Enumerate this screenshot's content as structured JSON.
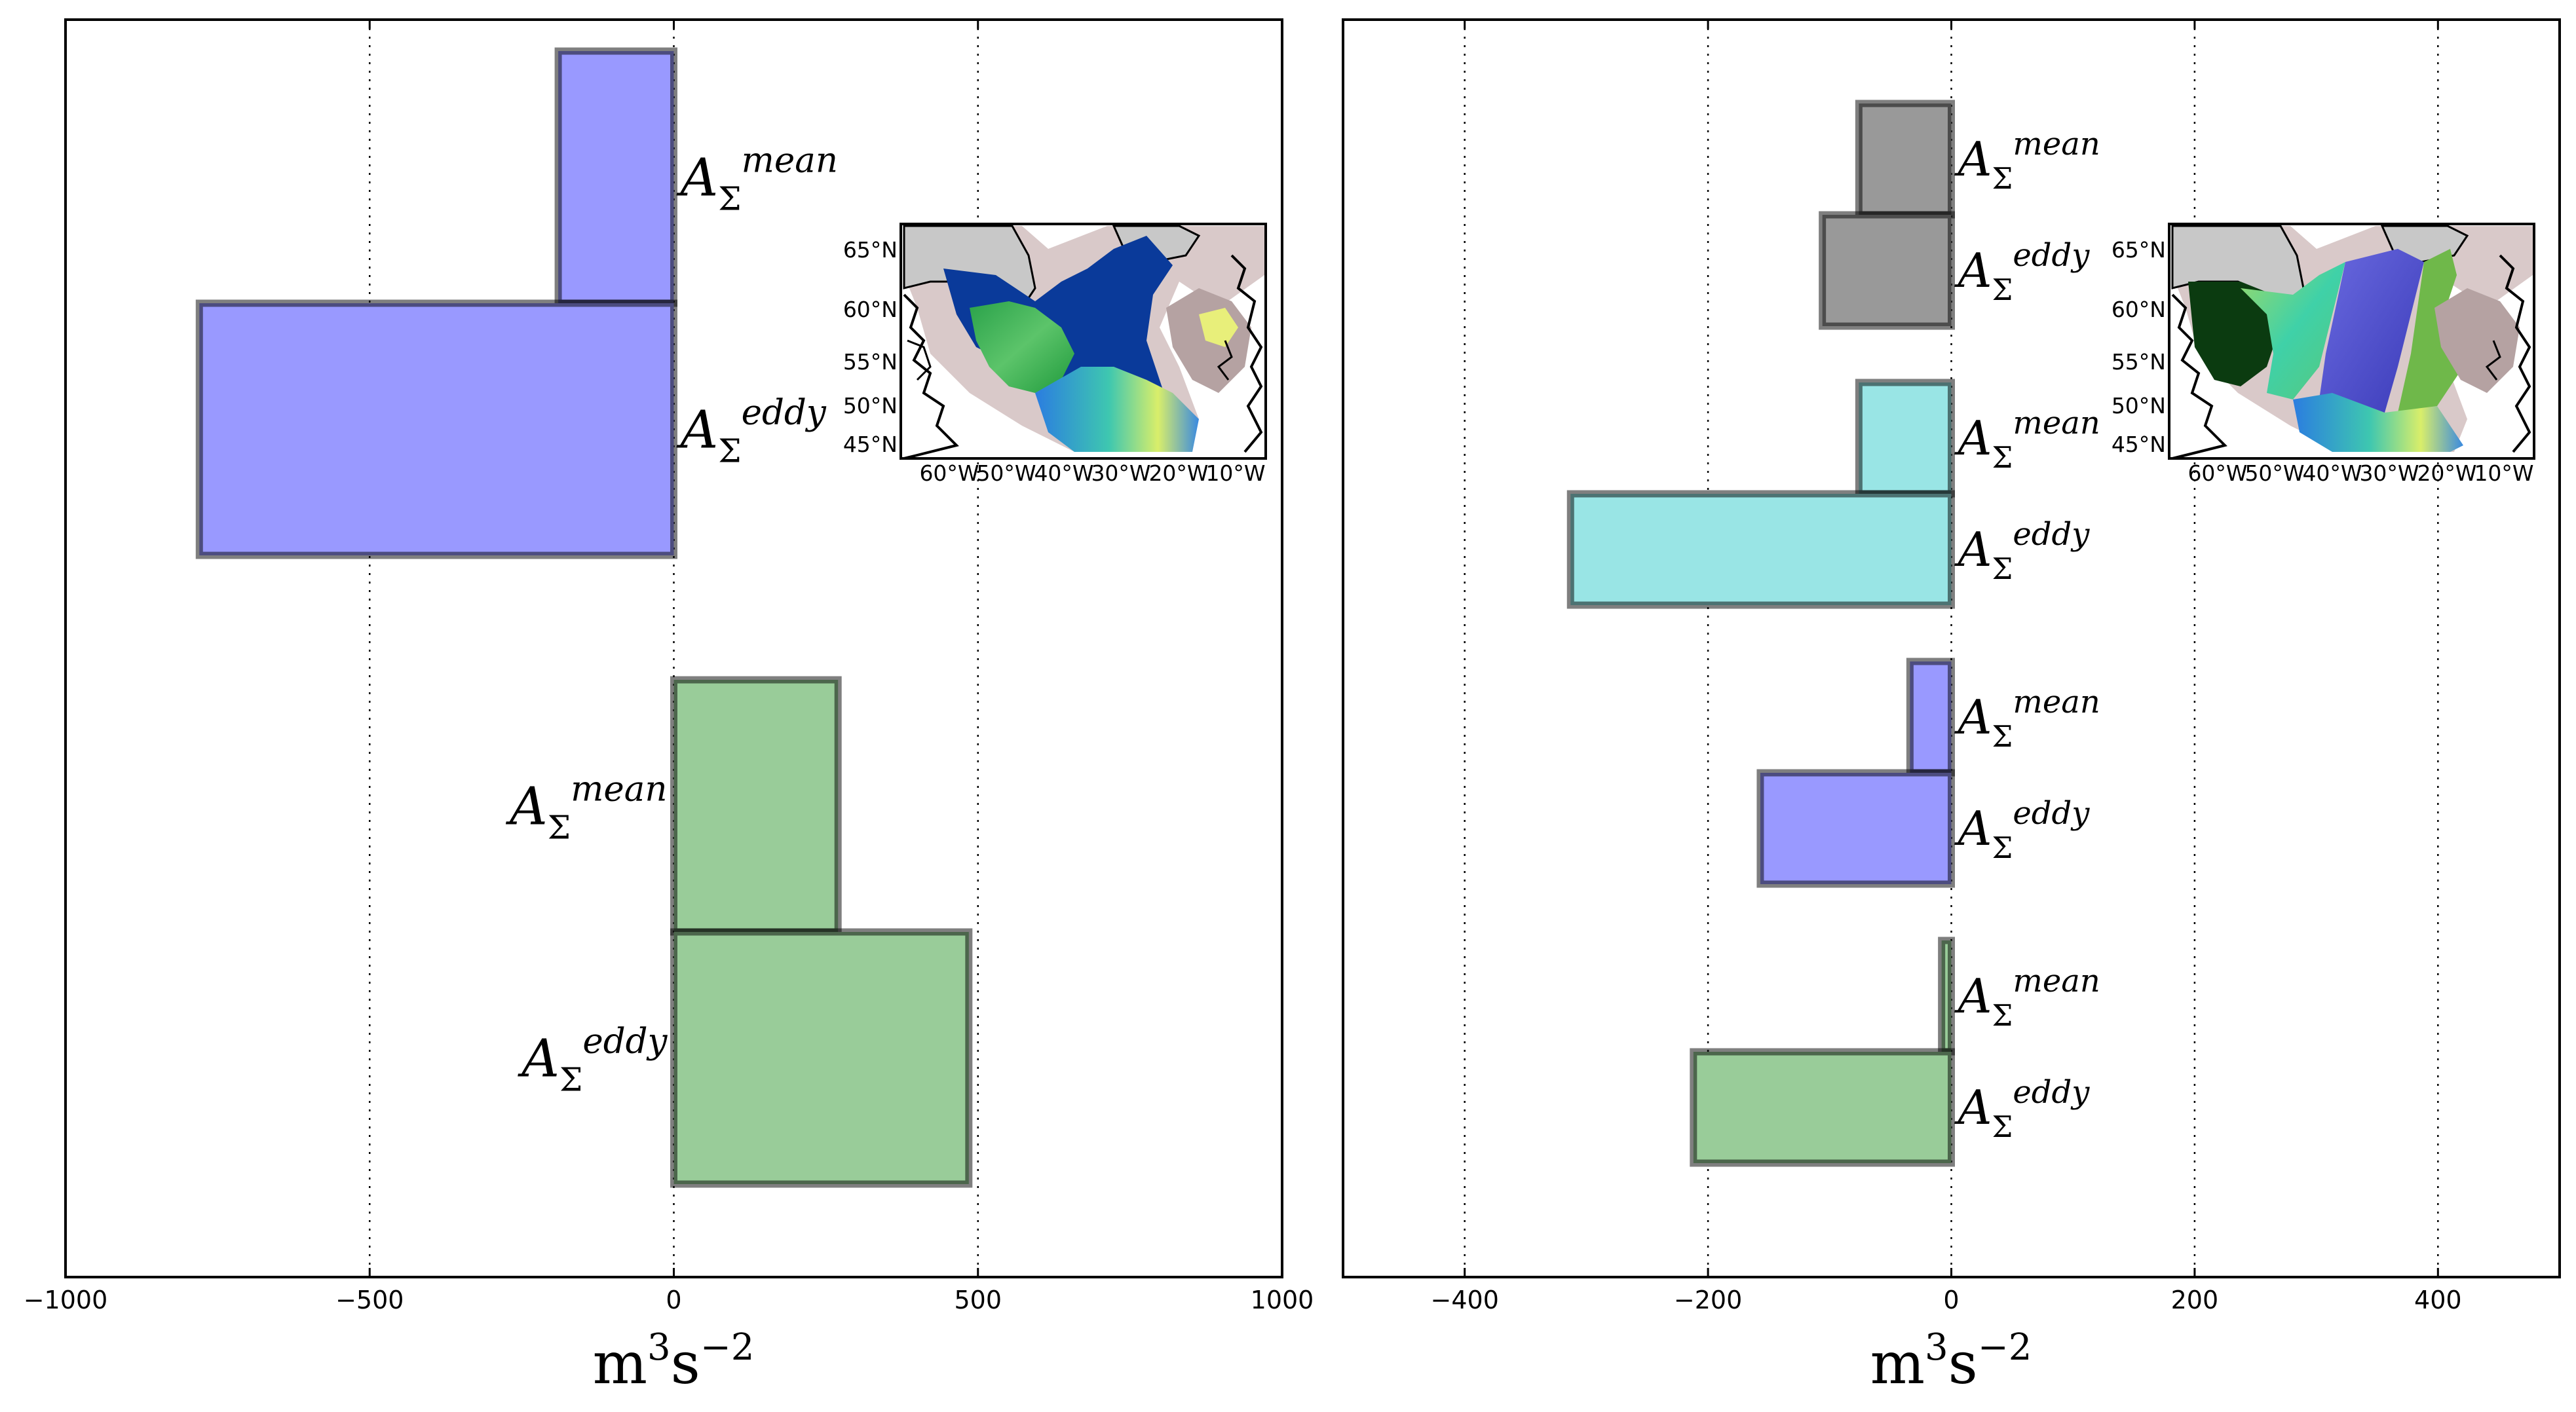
{
  "chart_data": [
    {
      "type": "bar",
      "orientation": "horizontal",
      "xlim": [
        -1000,
        1000
      ],
      "xticks": [
        -1000,
        -500,
        0,
        500,
        1000
      ],
      "tick_labels": [
        "−1000",
        "−500",
        "0",
        "500",
        "1000"
      ],
      "xlabel": "m3s−2",
      "xlabel_base": "m",
      "xlabel_exp1": "3",
      "xlabel_mid": "s",
      "xlabel_exp2": "−2",
      "grid": "x-dotted",
      "groups": [
        {
          "color": "#9999ff",
          "bars": [
            {
              "label": "AΣmean",
              "label_sup": "mean",
              "value": -190
            },
            {
              "label": "AΣeddy",
              "label_sup": "eddy",
              "value": -780
            }
          ]
        },
        {
          "color": "#99cc99",
          "bars": [
            {
              "label": "AΣmean",
              "label_sup": "mean",
              "value": 270
            },
            {
              "label": "AΣeddy",
              "label_sup": "eddy",
              "value": 485
            }
          ]
        }
      ]
    },
    {
      "type": "bar",
      "orientation": "horizontal",
      "xlim": [
        -500,
        500
      ],
      "xticks": [
        -400,
        -200,
        0,
        200,
        400
      ],
      "tick_labels": [
        "−400",
        "−200",
        "0",
        "200",
        "400"
      ],
      "xlabel": "m3s−2",
      "xlabel_base": "m",
      "xlabel_exp1": "3",
      "xlabel_mid": "s",
      "xlabel_exp2": "−2",
      "grid": "x-dotted",
      "groups": [
        {
          "color": "#999999",
          "bars": [
            {
              "label": "AΣmean",
              "label_sup": "mean",
              "value": -76
            },
            {
              "label": "AΣeddy",
              "label_sup": "eddy",
              "value": -106
            }
          ]
        },
        {
          "color": "#99e5e5",
          "bars": [
            {
              "label": "AΣmean",
              "label_sup": "mean",
              "value": -76
            },
            {
              "label": "AΣeddy",
              "label_sup": "eddy",
              "value": -313
            }
          ]
        },
        {
          "color": "#9999ff",
          "bars": [
            {
              "label": "AΣmean",
              "label_sup": "mean",
              "value": -34
            },
            {
              "label": "AΣeddy",
              "label_sup": "eddy",
              "value": -157
            }
          ]
        },
        {
          "color": "#99cc99",
          "bars": [
            {
              "label": "AΣmean",
              "label_sup": "mean",
              "value": -8
            },
            {
              "label": "AΣeddy",
              "label_sup": "eddy",
              "value": -212
            }
          ]
        }
      ]
    }
  ],
  "insets": [
    {
      "kind": "regions",
      "lat_labels": [
        "65°N",
        "60°N",
        "55°N",
        "50°N",
        "45°N"
      ],
      "lon_labels": [
        "60°W",
        "50°W",
        "40°W",
        "30°W",
        "20°W",
        "10°W"
      ]
    },
    {
      "kind": "sections",
      "lat_labels": [
        "65°N",
        "60°N",
        "55°N",
        "50°N",
        "45°N"
      ],
      "lon_labels": [
        "60°W",
        "50°W",
        "40°W",
        "30°W",
        "20°W",
        "10°W"
      ]
    }
  ]
}
